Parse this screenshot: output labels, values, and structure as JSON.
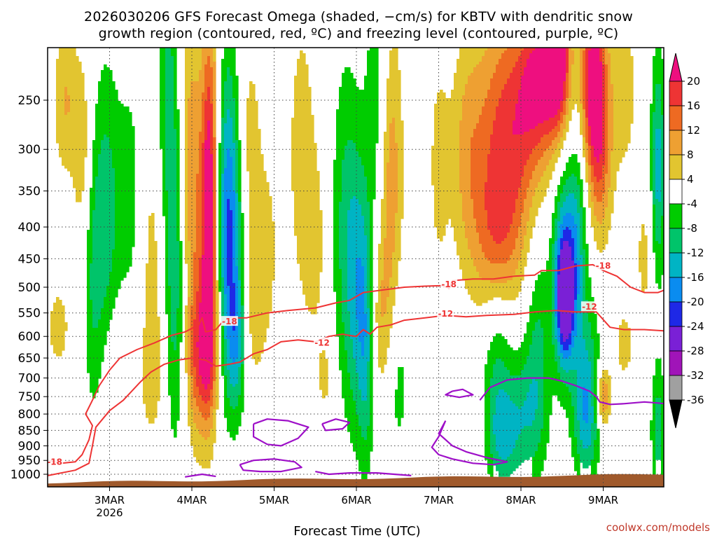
{
  "title_line1": "2026030206 GFS Forecast Omega (shaded, −cm/s) for KBTV with dendritic snow",
  "title_line2": "growth region (contoured, red, ºC) and freezing level (contoured, purple, ºC)",
  "xlabel": "Forecast Time (UTC)",
  "credit": "coolwx.com/models",
  "chart_data": {
    "type": "heatmap",
    "title": "2026030206 GFS Forecast Omega (shaded, −cm/s) for KBTV with dendritic snow growth region (contoured, red, ºC) and freezing level (contoured, purple, ºC)",
    "xlabel": "Forecast Time (UTC)",
    "ylabel": "",
    "x_ticks": [
      {
        "label": "3MAR",
        "sub": "2026",
        "t": 0
      },
      {
        "label": "4MAR",
        "sub": "",
        "t": 24
      },
      {
        "label": "5MAR",
        "sub": "",
        "t": 48
      },
      {
        "label": "6MAR",
        "sub": "",
        "t": 72
      },
      {
        "label": "7MAR",
        "sub": "",
        "t": 96
      },
      {
        "label": "8MAR",
        "sub": "",
        "t": 120
      },
      {
        "label": "9MAR",
        "sub": "",
        "t": 144
      }
    ],
    "x_range_hours": [
      -18,
      162
    ],
    "y_levels_hpa": [
      250,
      300,
      350,
      400,
      450,
      500,
      550,
      600,
      650,
      700,
      750,
      800,
      850,
      900,
      950,
      1000
    ],
    "y_range_hpa": [
      200,
      1030
    ],
    "y_scale": "log",
    "colorbar": {
      "labels": [
        20,
        16,
        12,
        8,
        4,
        -4,
        -8,
        -12,
        -16,
        -20,
        -24,
        -28,
        -32,
        -36
      ],
      "bins": [
        {
          "from": 20,
          "color": "#ee0f7f"
        },
        {
          "from": 16,
          "to": 20,
          "color": "#ee3434"
        },
        {
          "from": 12,
          "to": 16,
          "color": "#ee6a22"
        },
        {
          "from": 8,
          "to": 12,
          "color": "#eea032"
        },
        {
          "from": 4,
          "to": 8,
          "color": "#e2c530"
        },
        {
          "from": -4,
          "to": 4,
          "color": "#ffffff"
        },
        {
          "from": -8,
          "to": -4,
          "color": "#00cc00"
        },
        {
          "from": -12,
          "to": -8,
          "color": "#00c46a"
        },
        {
          "from": -16,
          "to": -12,
          "color": "#00b4c4"
        },
        {
          "from": -20,
          "to": -16,
          "color": "#0a8cf0"
        },
        {
          "from": -24,
          "to": -20,
          "color": "#1e28e6"
        },
        {
          "from": -28,
          "to": -24,
          "color": "#7a20d6"
        },
        {
          "from": -32,
          "to": -28,
          "color": "#a014b8"
        },
        {
          "from": -36,
          "to": -32,
          "color": "#a0a0a0"
        },
        {
          "to": -36,
          "color": "#000000"
        }
      ]
    },
    "contour_labels": [
      {
        "text": "-18",
        "t": -16,
        "p": 955,
        "color": "#ee3434"
      },
      {
        "text": "-18",
        "t": 35,
        "p": 568,
        "color": "#ee3434"
      },
      {
        "text": "-12",
        "t": 62,
        "p": 615,
        "color": "#ee3434"
      },
      {
        "text": "-18",
        "t": 99,
        "p": 495,
        "color": "#ee3434"
      },
      {
        "text": "-12",
        "t": 98,
        "p": 552,
        "color": "#ee3434"
      },
      {
        "text": "-18",
        "t": 144,
        "p": 462,
        "color": "#ee3434"
      },
      {
        "text": "-12",
        "t": 140,
        "p": 538,
        "color": "#ee3434"
      }
    ],
    "colors": {
      "dendritic_contour": "#ee3434",
      "freezing_contour": "#9e10c8",
      "terrain": "#a05a2c",
      "grid": "#444444"
    }
  }
}
